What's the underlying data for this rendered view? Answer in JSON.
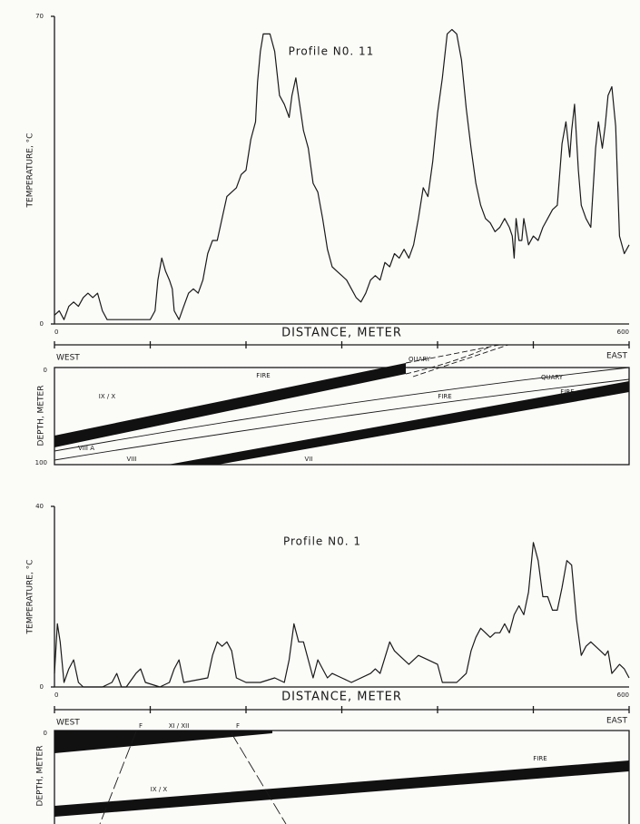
{
  "chart_data": [
    {
      "type": "line",
      "title": "Profile N0. 11",
      "xlabel": "DISTANCE, METER",
      "ylabel": "TEMPERATURE, °C",
      "x_left_label": "WEST",
      "x_right_label": "EAST",
      "x": [
        0,
        5,
        10,
        15,
        20,
        25,
        30,
        35,
        40,
        45,
        50,
        55,
        90,
        100,
        105,
        108,
        112,
        116,
        120,
        123,
        125,
        130,
        135,
        140,
        145,
        150,
        155,
        160,
        165,
        170,
        175,
        180,
        185,
        190,
        195,
        200,
        205,
        210,
        212,
        215,
        218,
        225,
        230,
        235,
        240,
        245,
        248,
        252,
        256,
        260,
        265,
        270,
        275,
        280,
        285,
        290,
        295,
        300,
        305,
        310,
        315,
        320,
        325,
        330,
        335,
        340,
        345,
        350,
        355,
        360,
        365,
        370,
        375,
        380,
        385,
        390,
        395,
        400,
        405,
        410,
        415,
        420,
        425,
        430,
        435,
        440,
        445,
        450,
        455,
        460,
        465,
        470,
        475,
        478,
        480,
        482,
        485,
        488,
        490,
        495,
        500,
        505,
        510,
        515,
        520,
        525,
        530,
        534,
        538,
        540,
        543,
        547,
        550,
        555,
        560,
        565,
        568,
        572,
        575,
        578,
        582,
        586,
        590,
        595,
        600
      ],
      "series": [
        {
          "color": "#1a1a1a",
          "values": [
            2,
            3,
            1,
            4,
            5,
            4,
            6,
            7,
            6,
            7,
            3,
            1,
            1,
            1,
            3,
            10,
            15,
            12,
            10,
            8,
            3,
            1,
            4,
            7,
            8,
            7,
            10,
            16,
            19,
            19,
            24,
            29,
            30,
            31,
            34,
            35,
            42,
            46,
            55,
            62,
            66,
            66,
            62,
            52,
            50,
            47,
            52,
            56,
            50,
            44,
            40,
            32,
            30,
            24,
            17,
            13,
            12,
            11,
            10,
            8,
            6,
            5,
            7,
            10,
            11,
            10,
            14,
            13,
            16,
            15,
            17,
            15,
            18,
            24,
            31,
            29,
            37,
            48,
            56,
            66,
            67,
            66,
            60,
            49,
            40,
            32,
            27,
            24,
            23,
            21,
            22,
            24,
            22,
            20,
            15,
            24,
            19,
            19,
            24,
            18,
            20,
            19,
            22,
            24,
            26,
            27,
            41,
            46,
            38,
            44,
            50,
            35,
            27,
            24,
            22,
            40,
            46,
            40,
            45,
            52,
            54,
            45,
            20,
            16,
            18
          ]
        }
      ],
      "xlim": [
        0,
        600
      ],
      "ylim": [
        0,
        70
      ],
      "xticks": [
        0,
        600
      ],
      "xminorticks": [
        100,
        200,
        300,
        400,
        500
      ],
      "yticks": [
        0,
        70
      ]
    },
    {
      "type": "line",
      "title": "Profile N0. 1",
      "xlabel": "DISTANCE, METER",
      "ylabel": "TEMPERATURE, °C",
      "x_left_label": "WEST",
      "x_right_label": "EAST",
      "x": [
        0,
        3,
        6,
        10,
        15,
        20,
        25,
        30,
        50,
        60,
        65,
        70,
        75,
        85,
        90,
        95,
        110,
        120,
        125,
        130,
        135,
        160,
        165,
        170,
        175,
        180,
        185,
        190,
        200,
        215,
        230,
        240,
        245,
        250,
        255,
        260,
        265,
        270,
        275,
        280,
        285,
        290,
        300,
        310,
        330,
        335,
        340,
        350,
        355,
        360,
        370,
        380,
        390,
        400,
        405,
        420,
        430,
        435,
        440,
        445,
        450,
        455,
        460,
        465,
        470,
        475,
        480,
        485,
        490,
        495,
        500,
        505,
        510,
        515,
        520,
        525,
        530,
        535,
        540,
        545,
        550,
        555,
        560,
        570,
        575,
        578,
        582,
        590,
        595,
        600
      ],
      "series": [
        {
          "color": "#1a1a1a",
          "values": [
            3,
            14,
            10,
            1,
            4,
            6,
            1,
            0,
            0,
            1,
            3,
            0,
            0,
            3,
            4,
            1,
            0,
            1,
            4,
            6,
            1,
            2,
            7,
            10,
            9,
            10,
            8,
            2,
            1,
            1,
            2,
            1,
            6,
            14,
            10,
            10,
            6,
            2,
            6,
            4,
            2,
            3,
            2,
            1,
            3,
            4,
            3,
            10,
            8,
            7,
            5,
            7,
            6,
            5,
            1,
            1,
            3,
            8,
            11,
            13,
            12,
            11,
            12,
            12,
            14,
            12,
            16,
            18,
            16,
            21,
            32,
            28,
            20,
            20,
            17,
            17,
            22,
            28,
            27,
            15,
            7,
            9,
            10,
            8,
            7,
            8,
            3,
            5,
            4,
            2
          ]
        }
      ],
      "xlim": [
        0,
        600
      ],
      "ylim": [
        0,
        40
      ],
      "xticks": [
        0,
        600
      ],
      "xminorticks": [
        100,
        200,
        300,
        400,
        500
      ],
      "yticks": [
        0,
        40
      ]
    }
  ],
  "sections": [
    {
      "ylabel": "DEPTH, METER",
      "yticks": [
        0,
        100
      ],
      "labels": [
        "FIRE",
        "IX / X",
        "VIII A",
        "VIII",
        "VII",
        "QUARY",
        "FIRE",
        "QUARY",
        "FIRE"
      ]
    },
    {
      "ylabel": "DEPTH, METER",
      "yticks": [
        0
      ],
      "labels": [
        "F",
        "XI / XII",
        "F",
        "IX / X",
        "FIRE"
      ]
    }
  ]
}
